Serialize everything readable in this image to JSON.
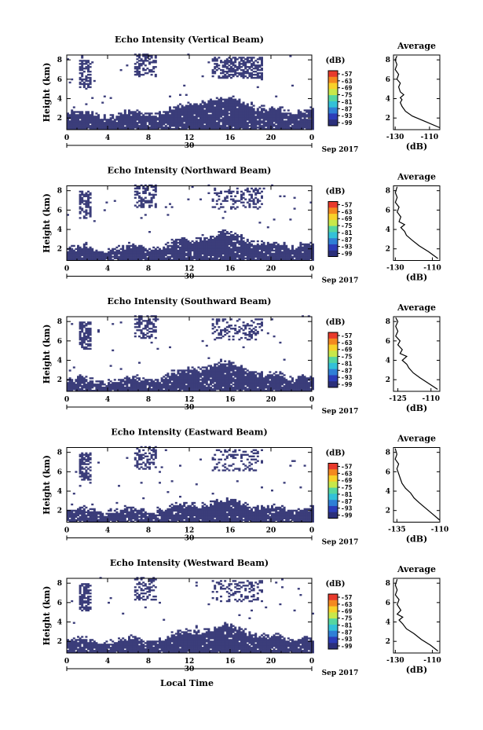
{
  "chart_data": [
    {
      "type": "heatmap",
      "title": "Echo Intensity (Vertical Beam)",
      "ylabel": "Height (km)",
      "x_ticks": [
        "0",
        "4",
        "8",
        "12",
        "16",
        "20",
        "0"
      ],
      "y_ticks": [
        "2",
        "4",
        "6",
        "8"
      ],
      "xlim": [
        0,
        24
      ],
      "ylim": [
        0.8,
        8.5
      ],
      "date_marker": "30",
      "date_label": "Sep 2017",
      "colorbar": {
        "unit": "(dB)",
        "ticks": [
          "-57",
          "-63",
          "-69",
          "-75",
          "-81",
          "-87",
          "-93",
          "-99"
        ]
      },
      "profile": {
        "title": "Average",
        "xlabel": "(dB)",
        "x_ticks": [
          "-130",
          "-110"
        ],
        "xlim": [
          -131,
          -104
        ],
        "y_ticks": [
          "2",
          "4",
          "6",
          "8"
        ],
        "points": [
          [
            -104,
            1.0
          ],
          [
            -112,
            1.6
          ],
          [
            -120,
            2.2
          ],
          [
            -124,
            2.7
          ],
          [
            -126,
            3.2
          ],
          [
            -127,
            3.6
          ],
          [
            -126,
            3.9
          ],
          [
            -127,
            4.1
          ],
          [
            -125,
            4.4
          ],
          [
            -127,
            4.7
          ],
          [
            -128,
            5.2
          ],
          [
            -127,
            5.6
          ],
          [
            -129,
            6.0
          ],
          [
            -128,
            6.5
          ],
          [
            -130,
            7.0
          ],
          [
            -129,
            7.5
          ],
          [
            -130,
            8.0
          ],
          [
            -129,
            8.4
          ]
        ]
      }
    },
    {
      "type": "heatmap",
      "title": "Echo Intensity (Northward Beam)",
      "ylabel": "Height (km)",
      "x_ticks": [
        "0",
        "4",
        "8",
        "12",
        "16",
        "20",
        "0"
      ],
      "y_ticks": [
        "2",
        "4",
        "6",
        "8"
      ],
      "xlim": [
        0,
        24
      ],
      "ylim": [
        0.8,
        8.5
      ],
      "date_marker": "30",
      "date_label": "Sep 2017",
      "colorbar": {
        "unit": "(dB)",
        "ticks": [
          "-57",
          "-63",
          "-69",
          "-75",
          "-81",
          "-87",
          "-93",
          "-99"
        ]
      },
      "profile": {
        "title": "Average",
        "xlabel": "(dB)",
        "x_ticks": [
          "-130",
          "-110"
        ],
        "xlim": [
          -131,
          -106
        ],
        "y_ticks": [
          "2",
          "4",
          "6",
          "8"
        ],
        "points": [
          [
            -107,
            1.0
          ],
          [
            -112,
            1.7
          ],
          [
            -117,
            2.3
          ],
          [
            -121,
            2.9
          ],
          [
            -124,
            3.4
          ],
          [
            -125,
            3.8
          ],
          [
            -127,
            4.2
          ],
          [
            -125,
            4.5
          ],
          [
            -128,
            4.8
          ],
          [
            -127,
            5.3
          ],
          [
            -129,
            5.8
          ],
          [
            -128,
            6.3
          ],
          [
            -130,
            6.8
          ],
          [
            -129,
            7.3
          ],
          [
            -130,
            7.8
          ],
          [
            -129,
            8.4
          ]
        ]
      }
    },
    {
      "type": "heatmap",
      "title": "Echo Intensity (Southward Beam)",
      "ylabel": "Height (km)",
      "x_ticks": [
        "0",
        "4",
        "8",
        "12",
        "16",
        "20",
        "0"
      ],
      "y_ticks": [
        "2",
        "4",
        "6",
        "8"
      ],
      "xlim": [
        0,
        24
      ],
      "ylim": [
        0.8,
        8.5
      ],
      "date_marker": "30",
      "date_label": "Sep 2017",
      "colorbar": {
        "unit": "(dB)",
        "ticks": [
          "-57",
          "-63",
          "-69",
          "-75",
          "-81",
          "-87",
          "-93",
          "-99"
        ]
      },
      "profile": {
        "title": "Average",
        "xlabel": "(dB)",
        "x_ticks": [
          "-125",
          "-110"
        ],
        "xlim": [
          -127,
          -106
        ],
        "y_ticks": [
          "2",
          "4",
          "6",
          "8"
        ],
        "points": [
          [
            -107,
            1.0
          ],
          [
            -111,
            1.6
          ],
          [
            -115,
            2.2
          ],
          [
            -118,
            2.7
          ],
          [
            -120,
            3.2
          ],
          [
            -121,
            3.6
          ],
          [
            -123,
            4.0
          ],
          [
            -121,
            4.4
          ],
          [
            -124,
            4.7
          ],
          [
            -123,
            5.1
          ],
          [
            -125,
            5.6
          ],
          [
            -124,
            6.0
          ],
          [
            -126,
            6.5
          ],
          [
            -125,
            7.0
          ],
          [
            -126,
            7.5
          ],
          [
            -125,
            8.0
          ],
          [
            -126,
            8.4
          ]
        ]
      }
    },
    {
      "type": "heatmap",
      "title": "Echo Intensity (Eastward Beam)",
      "ylabel": "Height (km)",
      "x_ticks": [
        "0",
        "4",
        "8",
        "12",
        "16",
        "20",
        "0"
      ],
      "y_ticks": [
        "2",
        "4",
        "6",
        "8"
      ],
      "xlim": [
        0,
        24
      ],
      "ylim": [
        0.8,
        8.5
      ],
      "date_marker": "30",
      "date_label": "Sep 2017",
      "colorbar": {
        "unit": "(dB)",
        "ticks": [
          "-57",
          "-63",
          "-69",
          "-75",
          "-81",
          "-87",
          "-93",
          "-99"
        ]
      },
      "profile": {
        "title": "Average",
        "xlabel": "(dB)",
        "x_ticks": [
          "-135",
          "-110"
        ],
        "xlim": [
          -137,
          -110
        ],
        "y_ticks": [
          "2",
          "4",
          "6",
          "8"
        ],
        "points": [
          [
            -110,
            1.0
          ],
          [
            -114,
            1.6
          ],
          [
            -118,
            2.2
          ],
          [
            -122,
            2.8
          ],
          [
            -125,
            3.3
          ],
          [
            -127,
            3.8
          ],
          [
            -130,
            4.3
          ],
          [
            -132,
            4.8
          ],
          [
            -133,
            5.3
          ],
          [
            -134,
            5.8
          ],
          [
            -135,
            6.3
          ],
          [
            -134,
            6.8
          ],
          [
            -136,
            7.3
          ],
          [
            -135,
            7.8
          ],
          [
            -136,
            8.4
          ]
        ]
      }
    },
    {
      "type": "heatmap",
      "title": "Echo Intensity (Westward Beam)",
      "ylabel": "Height (km)",
      "xlabel": "Local Time",
      "x_ticks": [
        "0",
        "4",
        "8",
        "12",
        "16",
        "20",
        "0"
      ],
      "y_ticks": [
        "2",
        "4",
        "6",
        "8"
      ],
      "xlim": [
        0,
        24
      ],
      "ylim": [
        0.8,
        8.5
      ],
      "date_marker": "30",
      "date_label": "Sep 2017",
      "colorbar": {
        "unit": "(dB)",
        "ticks": [
          "-57",
          "-63",
          "-69",
          "-75",
          "-81",
          "-87",
          "-93",
          "-99"
        ]
      },
      "profile": {
        "title": "Average",
        "xlabel": "(dB)",
        "x_ticks": [
          "-130",
          "-110"
        ],
        "xlim": [
          -131,
          -106
        ],
        "y_ticks": [
          "2",
          "4",
          "6",
          "8"
        ],
        "points": [
          [
            -107,
            1.0
          ],
          [
            -111,
            1.6
          ],
          [
            -116,
            2.2
          ],
          [
            -120,
            2.8
          ],
          [
            -124,
            3.3
          ],
          [
            -126,
            3.8
          ],
          [
            -128,
            4.2
          ],
          [
            -126,
            4.5
          ],
          [
            -129,
            4.8
          ],
          [
            -127,
            5.2
          ],
          [
            -129,
            5.8
          ],
          [
            -128,
            6.3
          ],
          [
            -130,
            6.8
          ],
          [
            -129,
            7.3
          ],
          [
            -130,
            7.8
          ],
          [
            -129,
            8.4
          ]
        ]
      }
    }
  ],
  "colors": {
    "echo_fill": "#3b3d7a",
    "colorbar": [
      "#e83a2c",
      "#f4891f",
      "#f8d12a",
      "#c8e84a",
      "#55d6a0",
      "#33c1d8",
      "#2f7fd6",
      "#2c3db8",
      "#2b2f7a"
    ]
  }
}
